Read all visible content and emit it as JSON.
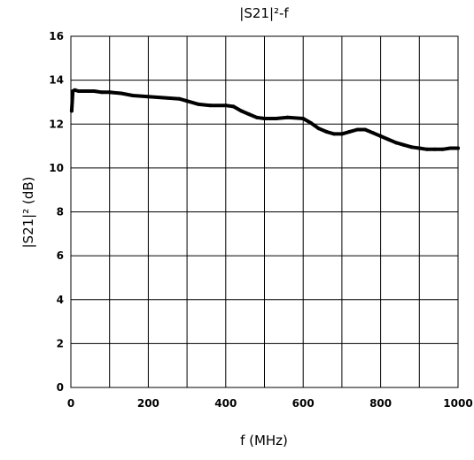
{
  "chart_data": {
    "type": "line",
    "title": "|S21|²-f",
    "xlabel": "f (MHz)",
    "ylabel": "|S21|² (dB)",
    "xlim": [
      0,
      1000
    ],
    "ylim": [
      0,
      16
    ],
    "xticks": [
      0,
      200,
      400,
      600,
      800,
      1000
    ],
    "xtick_labels": [
      "0",
      "200",
      "400",
      "600",
      "800",
      "1000"
    ],
    "yticks": [
      0,
      2,
      4,
      6,
      8,
      10,
      12,
      14,
      16
    ],
    "ytick_labels": [
      "0",
      "2",
      "4",
      "6",
      "8",
      "10",
      "12",
      "14",
      "16"
    ],
    "grid": true,
    "x_gridlines": [
      0,
      100,
      200,
      300,
      400,
      500,
      600,
      700,
      800,
      900,
      1000
    ],
    "line_color": "#000000",
    "series": [
      {
        "x": [
          2,
          5,
          10,
          20,
          40,
          60,
          80,
          100,
          130,
          160,
          200,
          240,
          280,
          300,
          330,
          360,
          400,
          420,
          440,
          460,
          480,
          500,
          530,
          560,
          600,
          620,
          640,
          660,
          680,
          700,
          720,
          740,
          760,
          780,
          800,
          820,
          840,
          860,
          880,
          900,
          920,
          940,
          960,
          980,
          1000
        ],
        "y": [
          12.6,
          13.5,
          13.55,
          13.5,
          13.5,
          13.5,
          13.45,
          13.45,
          13.4,
          13.3,
          13.25,
          13.2,
          13.15,
          13.05,
          12.9,
          12.85,
          12.85,
          12.8,
          12.6,
          12.45,
          12.3,
          12.25,
          12.25,
          12.3,
          12.25,
          12.05,
          11.8,
          11.65,
          11.55,
          11.55,
          11.65,
          11.75,
          11.75,
          11.6,
          11.45,
          11.3,
          11.15,
          11.05,
          10.95,
          10.9,
          10.85,
          10.85,
          10.85,
          10.9,
          10.9
        ]
      }
    ]
  }
}
